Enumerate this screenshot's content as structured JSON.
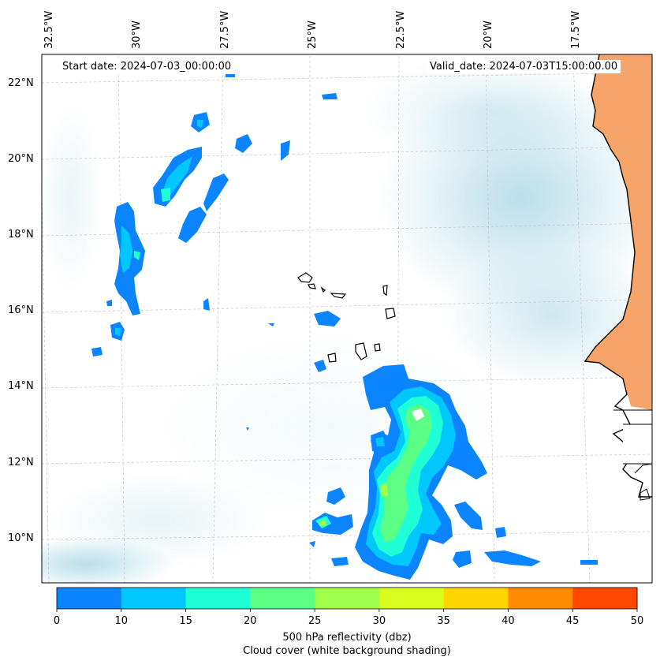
{
  "map": {
    "start_date": "Start date: 2024-07-03_00:00:00",
    "valid_date": "Valid_date: 2024-07-03T15:00:00.00",
    "lon_labels": [
      "32.5°W",
      "30°W",
      "27.5°W",
      "25°W",
      "22.5°W",
      "20°W",
      "17.5°W"
    ],
    "lat_labels": [
      "22°N",
      "20°N",
      "18°N",
      "16°N",
      "14°N",
      "12°N",
      "10°N"
    ],
    "colors": {
      "land": "#f6a46a",
      "cloud": "#a9d6e4",
      "coast": "#000000"
    }
  },
  "colorbar": {
    "ticks": [
      "0",
      "10",
      "15",
      "20",
      "25",
      "30",
      "35",
      "40",
      "45",
      "50"
    ],
    "colors": [
      "#0a84ff",
      "#00c8ff",
      "#1effd6",
      "#5cff85",
      "#a0ff4a",
      "#d8ff1e",
      "#ffd500",
      "#ff8c00",
      "#ff4800"
    ],
    "label": "500 hPa reflectivity (dbz)",
    "sublabel": "Cloud cover (white background shading)"
  }
}
